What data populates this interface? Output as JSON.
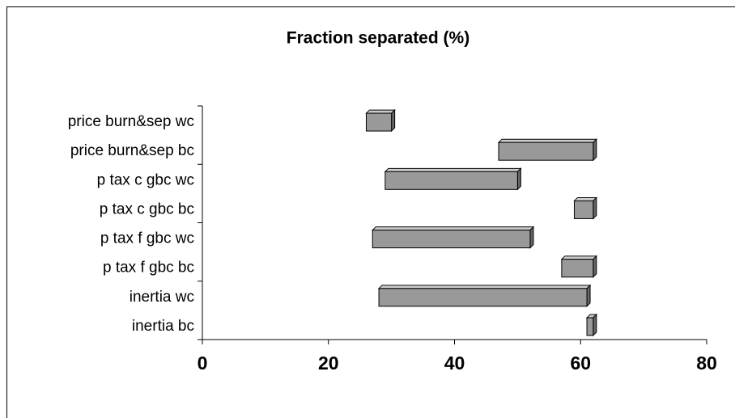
{
  "chart_data": {
    "type": "floating-bar",
    "title": "Fraction separated (%)",
    "categories": [
      "price burn&sep wc",
      "price burn&sep bc",
      "p tax c gbc wc",
      "p tax c gbc bc",
      "p tax f gbc wc",
      "p tax f gbc bc",
      "inertia wc",
      "inertia bc"
    ],
    "low": [
      26,
      47,
      29,
      59,
      27,
      57,
      28,
      61
    ],
    "high": [
      30,
      62,
      50,
      62,
      52,
      62,
      61,
      62
    ],
    "color": "#999999",
    "xlim": [
      0,
      80
    ],
    "xticks": [
      0,
      20,
      40,
      60,
      80
    ],
    "grid": false
  }
}
